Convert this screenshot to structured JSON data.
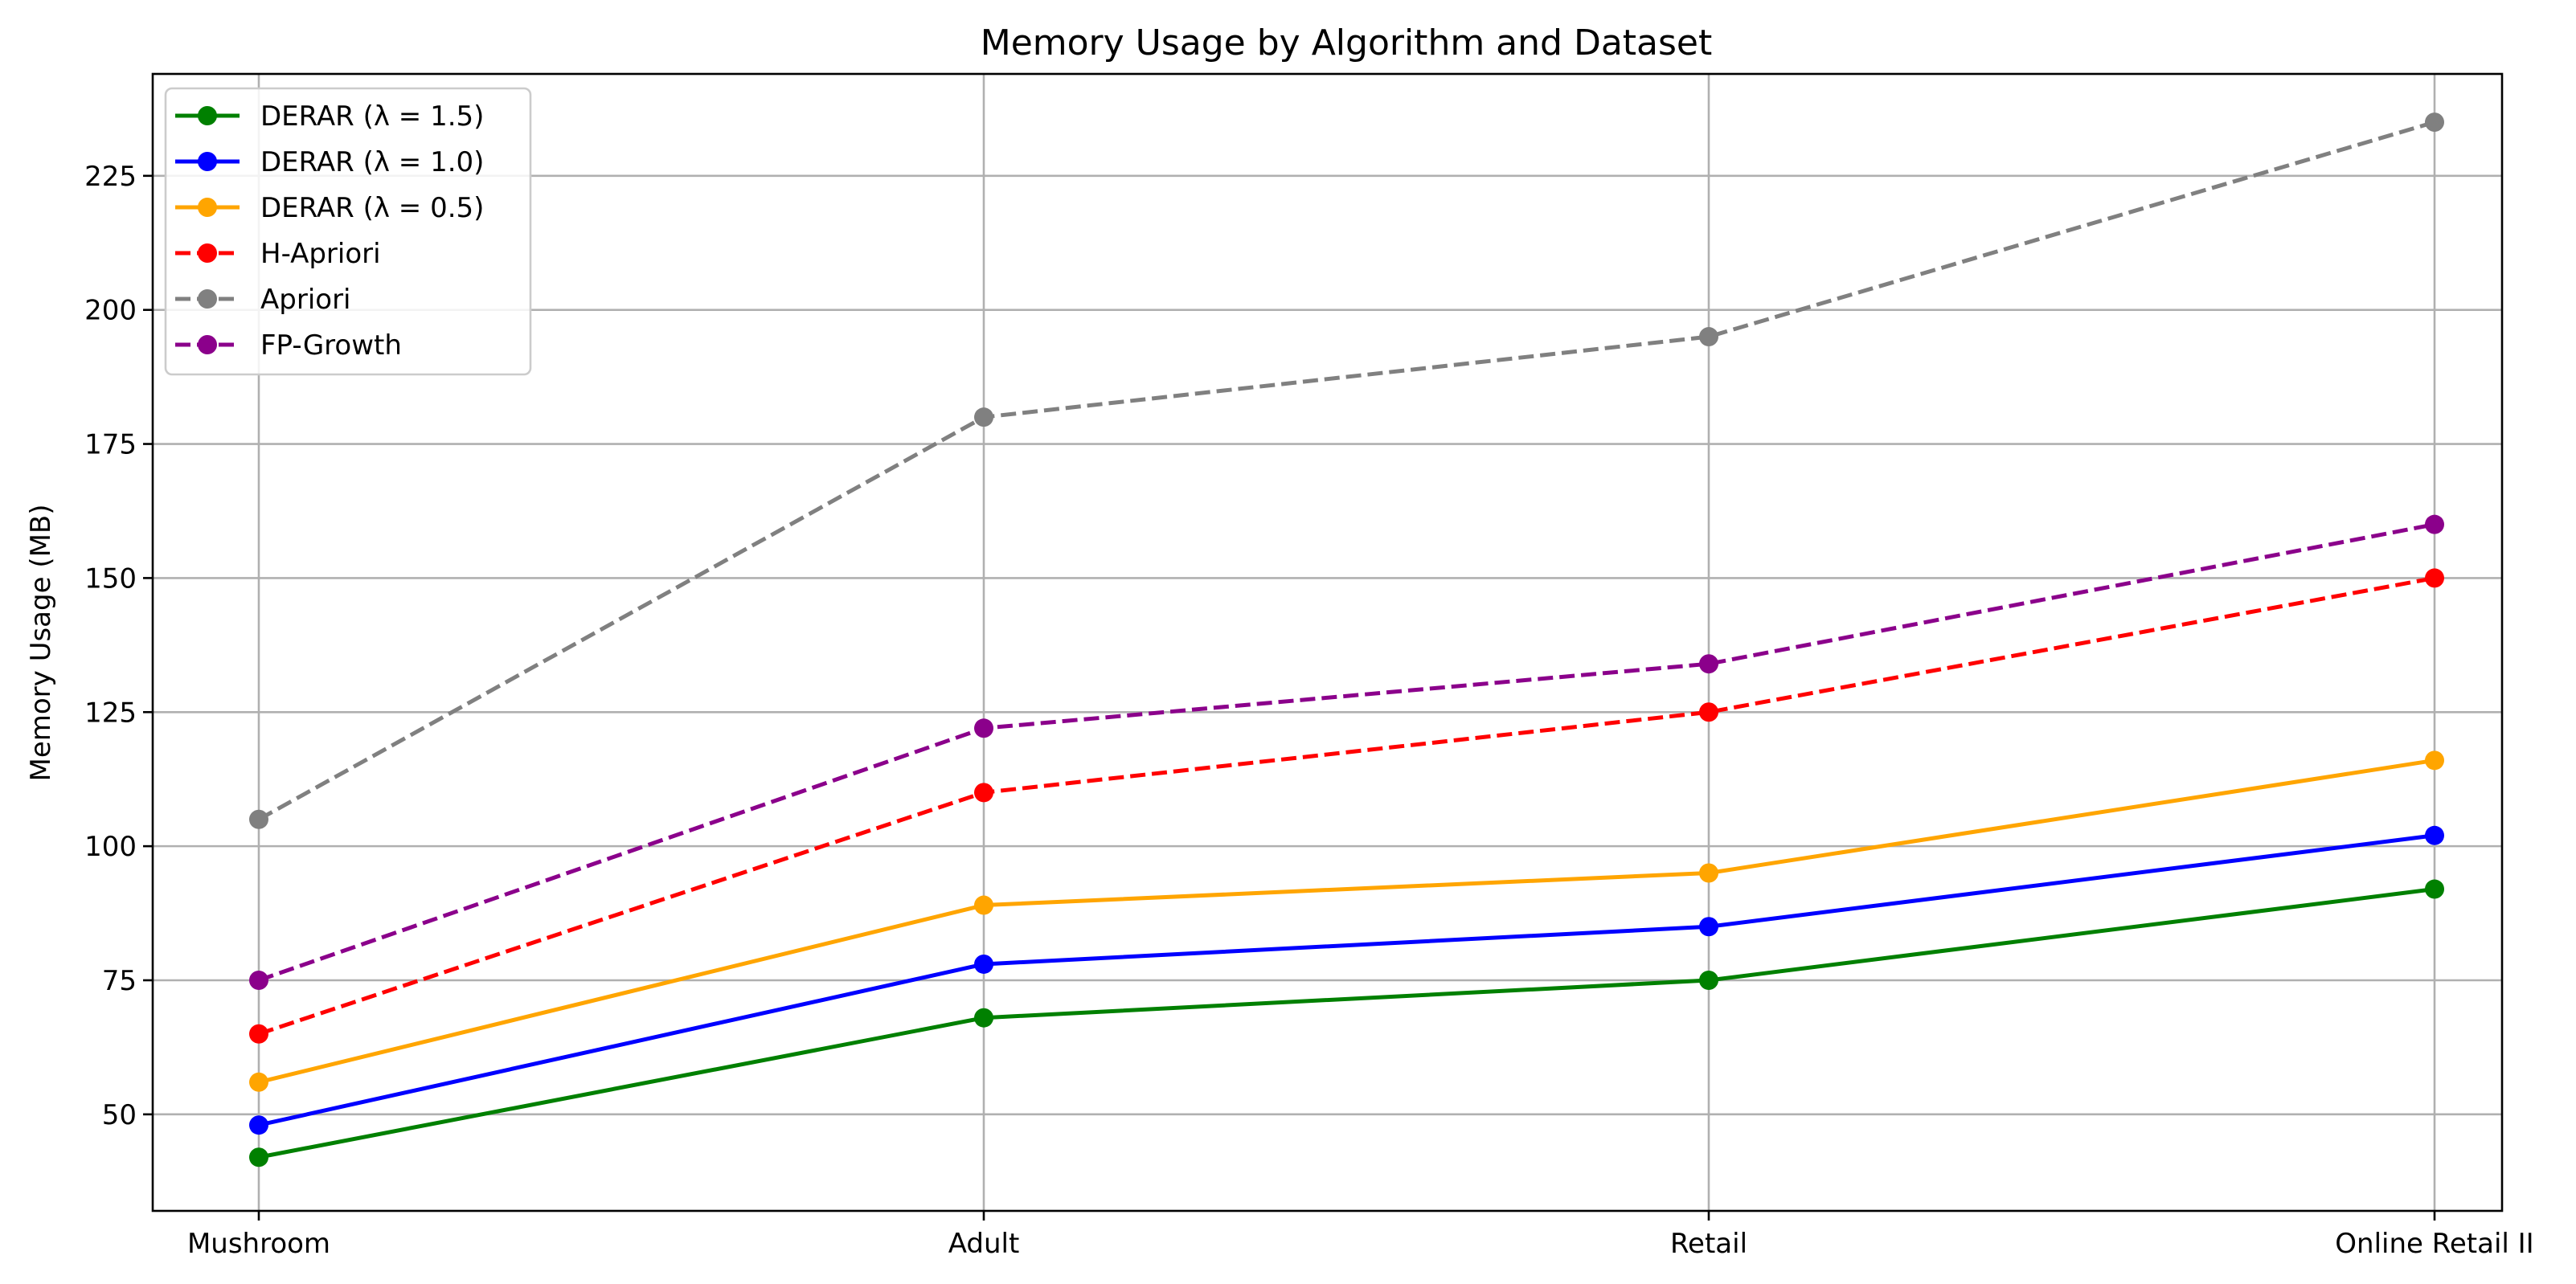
{
  "chart_data": {
    "type": "line",
    "title": "Memory Usage by Algorithm and Dataset",
    "xlabel": "",
    "ylabel": "Memory Usage (MB)",
    "categories": [
      "Mushroom",
      "Adult",
      "Retail",
      "Online Retail II"
    ],
    "ylim": [
      32,
      244
    ],
    "yticks": [
      50,
      75,
      100,
      125,
      150,
      175,
      200,
      225
    ],
    "grid": true,
    "legend_position": "top-left",
    "series": [
      {
        "name": "DERAR  (λ = 1.5)",
        "color": "#008000",
        "dashed": false,
        "values": [
          42,
          68,
          75,
          92
        ]
      },
      {
        "name": "DERAR  (λ = 1.0)",
        "color": "#0000ff",
        "dashed": false,
        "values": [
          48,
          78,
          85,
          102
        ]
      },
      {
        "name": "DERAR  (λ = 0.5)",
        "color": "#ffa500",
        "dashed": false,
        "values": [
          56,
          89,
          95,
          116
        ]
      },
      {
        "name": "H-Apriori",
        "color": "#ff0000",
        "dashed": true,
        "values": [
          65,
          110,
          125,
          150
        ]
      },
      {
        "name": "Apriori",
        "color": "#808080",
        "dashed": true,
        "values": [
          105,
          180,
          195,
          235
        ]
      },
      {
        "name": "FP-Growth",
        "color": "#8b008b",
        "dashed": true,
        "values": [
          75,
          122,
          134,
          160
        ]
      }
    ]
  }
}
